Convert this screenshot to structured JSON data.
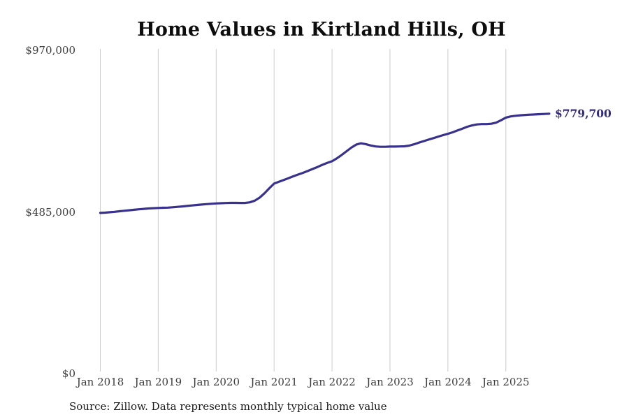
{
  "page": {
    "background": "#ffffff"
  },
  "chart_data": {
    "type": "line",
    "title": "Home Values in Kirtland Hills, OH",
    "xlabel": "",
    "ylabel": "",
    "ylim": [
      0,
      970000
    ],
    "grid": "vertical-only",
    "legend": "none",
    "x_tick_labels": [
      "Jan 2018",
      "Jan 2019",
      "Jan 2020",
      "Jan 2021",
      "Jan 2022",
      "Jan 2023",
      "Jan 2024",
      "Jan 2025"
    ],
    "x_tick_month_indices": [
      0,
      12,
      24,
      36,
      48,
      60,
      72,
      84
    ],
    "y_tick_labels": [
      "$0",
      "$485,000",
      "$970,000"
    ],
    "y_tick_values": [
      0,
      485000,
      970000
    ],
    "end_label": "$779,700",
    "last_value": 779700,
    "series": [
      {
        "name": "Monthly typical home value",
        "start_month": "Jan 2018",
        "end_month": "Oct 2025",
        "frequency": "monthly",
        "values": [
          482000,
          483000,
          484200,
          485500,
          487000,
          488500,
          490000,
          491500,
          493000,
          494300,
          495500,
          496300,
          497000,
          497500,
          498000,
          499000,
          500200,
          501600,
          503000,
          504500,
          506000,
          507300,
          508500,
          509500,
          510500,
          511200,
          511800,
          512200,
          512300,
          512000,
          512000,
          514000,
          519000,
          528000,
          541000,
          556000,
          570000,
          575500,
          581000,
          586500,
          592000,
          597200,
          602300,
          608000,
          614000,
          620000,
          626500,
          632000,
          637000,
          646000,
          656000,
          667000,
          678000,
          687000,
          691000,
          688500,
          684500,
          681500,
          680500,
          680500,
          681000,
          681000,
          681500,
          682000,
          684000,
          688000,
          693000,
          697500,
          702000,
          706500,
          711000,
          715500,
          719500,
          724000,
          729500,
          735000,
          740500,
          744500,
          747500,
          748500,
          748500,
          749500,
          753000,
          760000,
          768000,
          771500,
          773500,
          775000,
          776000,
          776800,
          777500,
          778300,
          779000,
          779700
        ]
      }
    ],
    "colors": {
      "line": "#38318e",
      "end_label": "#332c82",
      "axis_text": "#3d3d3d",
      "gridline": "#cccccc",
      "title": "#0d0d0d"
    }
  },
  "footer": {
    "source": "Source: Zillow. Data represents monthly typical home value"
  }
}
